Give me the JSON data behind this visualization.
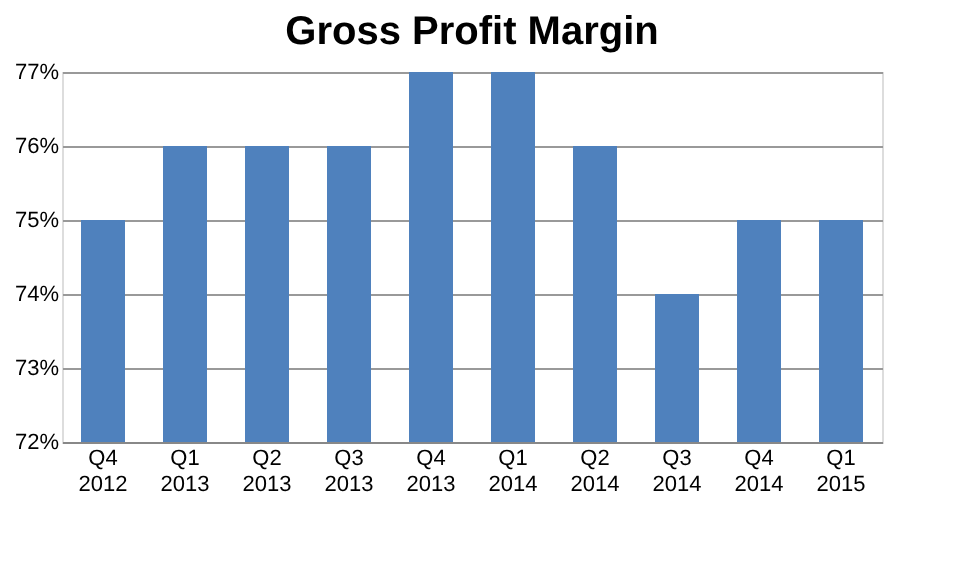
{
  "chart_data": {
    "type": "bar",
    "title": "Gross Profit Margin",
    "categories": [
      "Q4 2012",
      "Q1 2013",
      "Q2 2013",
      "Q3 2013",
      "Q4 2013",
      "Q1 2014",
      "Q2 2014",
      "Q3 2014",
      "Q4 2014",
      "Q1 2015"
    ],
    "values": [
      75,
      76,
      76,
      76,
      77,
      77,
      76,
      74,
      75,
      75
    ],
    "color": "#4f81bd",
    "ylim": [
      72,
      77
    ],
    "yticks": [
      {
        "value": 72,
        "label": "72%"
      },
      {
        "value": 73,
        "label": "73%"
      },
      {
        "value": 74,
        "label": "74%"
      },
      {
        "value": 75,
        "label": "75%"
      },
      {
        "value": 76,
        "label": "76%"
      },
      {
        "value": 77,
        "label": "77%"
      }
    ],
    "grid": "y"
  }
}
